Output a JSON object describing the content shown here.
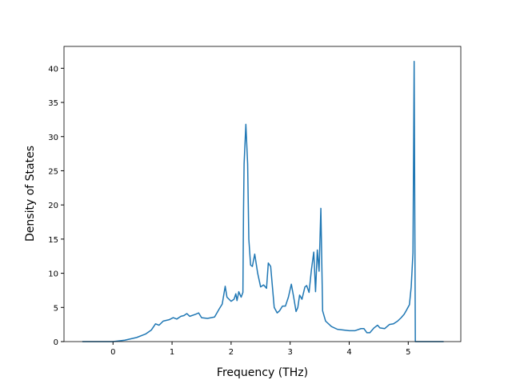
{
  "chart_data": {
    "type": "line",
    "xlabel": "Frequency (THz)",
    "ylabel": "Density of States",
    "x": [
      -0.52,
      0.0,
      0.2,
      0.4,
      0.55,
      0.65,
      0.72,
      0.78,
      0.85,
      0.95,
      1.02,
      1.08,
      1.15,
      1.2,
      1.25,
      1.3,
      1.4,
      1.45,
      1.5,
      1.6,
      1.72,
      1.8,
      1.85,
      1.9,
      1.93,
      2.0,
      2.05,
      2.08,
      2.1,
      2.13,
      2.17,
      2.2,
      2.21,
      2.22,
      2.25,
      2.28,
      2.3,
      2.33,
      2.36,
      2.4,
      2.45,
      2.5,
      2.55,
      2.6,
      2.63,
      2.67,
      2.7,
      2.73,
      2.78,
      2.82,
      2.87,
      2.92,
      2.97,
      3.02,
      3.06,
      3.1,
      3.13,
      3.16,
      3.2,
      3.25,
      3.28,
      3.32,
      3.36,
      3.4,
      3.43,
      3.46,
      3.49,
      3.52,
      3.55,
      3.6,
      3.7,
      3.8,
      4.0,
      4.1,
      4.2,
      4.25,
      4.3,
      4.35,
      4.42,
      4.48,
      4.52,
      4.6,
      4.68,
      4.75,
      4.82,
      4.88,
      4.93,
      4.97,
      5.02,
      5.05,
      5.08,
      5.1,
      5.12,
      5.6
    ],
    "series": [
      {
        "color": "#1f77b4",
        "values": [
          0,
          0,
          0.2,
          0.6,
          1.1,
          1.7,
          2.6,
          2.4,
          3.0,
          3.2,
          3.5,
          3.3,
          3.7,
          3.8,
          4.1,
          3.7,
          4.0,
          4.2,
          3.5,
          3.4,
          3.6,
          4.8,
          5.5,
          8.1,
          6.5,
          5.9,
          6.2,
          7.0,
          6.0,
          7.3,
          6.5,
          7.2,
          19,
          26,
          31.8,
          26,
          15,
          11.2,
          11.0,
          12.8,
          10,
          8,
          8.3,
          7.8,
          11.5,
          11,
          8,
          5,
          4.2,
          4.5,
          5.2,
          5.2,
          6.5,
          8.4,
          6.5,
          4.4,
          5.0,
          6.8,
          6.2,
          8.0,
          8.2,
          7.2,
          10.5,
          13.1,
          7.3,
          13.4,
          10.3,
          19.5,
          4.5,
          3.0,
          2.2,
          1.8,
          1.6,
          1.6,
          1.9,
          1.9,
          1.3,
          1.3,
          2.0,
          2.4,
          2.0,
          1.9,
          2.5,
          2.6,
          3.0,
          3.5,
          4.0,
          4.6,
          5.4,
          8,
          13,
          41,
          0,
          0
        ]
      }
    ],
    "xlim": [
      -0.83,
      5.89
    ],
    "ylim": [
      0,
      43.2
    ],
    "xticks": [
      0,
      1,
      2,
      3,
      4,
      5
    ],
    "yticks": [
      0,
      5,
      10,
      15,
      20,
      25,
      30,
      35,
      40
    ]
  }
}
